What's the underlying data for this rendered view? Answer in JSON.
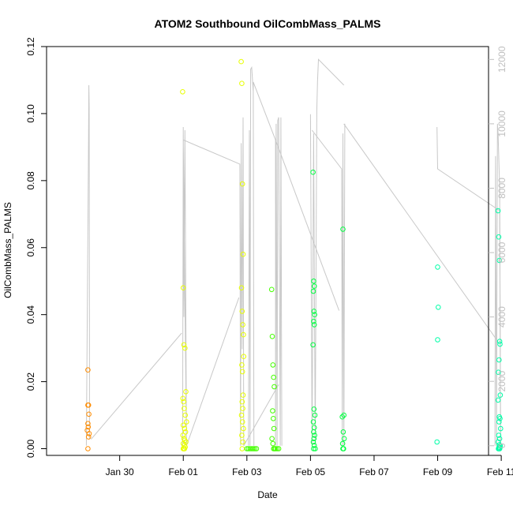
{
  "chart_data": {
    "type": "scatter",
    "title": "ATOM2 Southbound OilCombMass_PALMS",
    "xlabel": "Date",
    "ylabel": "OilCombMass_PALMS",
    "x_unit": "days from Jan 30",
    "xlim": [
      -2.3,
      11.6
    ],
    "ylim": [
      -0.002,
      0.12
    ],
    "y2lim": [
      -300,
      12400
    ],
    "x_ticks": [
      {
        "value": 0,
        "label": "Jan 30"
      },
      {
        "value": 2,
        "label": "Feb 01"
      },
      {
        "value": 4,
        "label": "Feb 03"
      },
      {
        "value": 6,
        "label": "Feb 05"
      },
      {
        "value": 8,
        "label": "Feb 07"
      },
      {
        "value": 10,
        "label": "Feb 09"
      },
      {
        "value": 12,
        "label": "Feb 11"
      }
    ],
    "y_ticks": [
      {
        "value": 0,
        "label": "0.00"
      },
      {
        "value": 0.02,
        "label": "0.02"
      },
      {
        "value": 0.04,
        "label": "0.04"
      },
      {
        "value": 0.06,
        "label": "0.06"
      },
      {
        "value": 0.08,
        "label": "0.08"
      },
      {
        "value": 0.1,
        "label": "0.10"
      },
      {
        "value": 0.12,
        "label": "0.12"
      }
    ],
    "y2_ticks": [
      {
        "value": 0,
        "label": "0"
      },
      {
        "value": 2000,
        "label": "2000"
      },
      {
        "value": 4000,
        "label": "4000"
      },
      {
        "value": 6000,
        "label": "6000"
      },
      {
        "value": 8000,
        "label": "8000"
      },
      {
        "value": 10000,
        "label": "10000"
      },
      {
        "value": 12000,
        "label": "12000"
      }
    ],
    "grid": false,
    "legend": "none",
    "colors": {
      "altitude_line": "#c8c8c8",
      "axis": "#000000",
      "right_axis": "#bfbfbf"
    },
    "series": [
      {
        "color": "#ff8c00",
        "x": [
          -1.0,
          -1.0,
          -0.98,
          -0.97,
          -1.0,
          -0.99,
          -1.02,
          -0.96,
          -0.98,
          -1.0
        ],
        "y": [
          0.0235,
          0.013,
          0.013,
          0.0103,
          0.0075,
          0.0065,
          0.0055,
          0.0045,
          0.0035,
          0.0
        ]
      },
      {
        "color": "#e8ff00",
        "x": [
          1.98,
          2.0,
          2.02,
          2.05,
          2.08,
          1.99,
          2.01,
          2.03,
          2.06,
          2.1,
          2.0,
          2.04,
          2.07,
          1.99,
          2.02,
          2.05,
          2.08,
          2.0,
          2.03,
          2.06,
          2.01,
          2.04,
          2.0,
          2.02,
          3.82,
          3.84,
          3.86,
          3.88,
          3.83,
          3.85,
          3.87,
          3.89,
          3.9,
          3.84,
          3.86,
          3.88,
          3.85,
          3.87,
          3.83,
          3.86,
          3.89,
          3.84,
          3.87,
          3.85
        ],
        "y": [
          0.1065,
          0.048,
          0.031,
          0.03,
          0.017,
          0.015,
          0.014,
          0.012,
          0.01,
          0.008,
          0.007,
          0.006,
          0.005,
          0.004,
          0.003,
          0.0025,
          0.002,
          0.0015,
          0.001,
          0.0005,
          0.0,
          0.0,
          0.0,
          0.0,
          0.1155,
          0.109,
          0.079,
          0.058,
          0.048,
          0.041,
          0.037,
          0.034,
          0.0275,
          0.025,
          0.023,
          0.016,
          0.014,
          0.012,
          0.01,
          0.008,
          0.006,
          0.004,
          0.002,
          0.0
        ]
      },
      {
        "color": "#44ff00",
        "x": [
          4.0,
          4.05,
          4.1,
          4.15,
          4.2,
          4.25,
          4.3,
          4.78,
          4.8,
          4.82,
          4.84,
          4.86,
          4.81,
          4.83,
          4.85,
          4.79,
          4.82,
          4.84,
          4.87,
          4.9,
          4.95,
          5.0
        ],
        "y": [
          0.0,
          0.0,
          0.0,
          0.0,
          0.0,
          0.0,
          0.0,
          0.0475,
          0.0335,
          0.025,
          0.0213,
          0.0185,
          0.0113,
          0.009,
          0.006,
          0.003,
          0.0015,
          0.0,
          0.0,
          0.0,
          0.0,
          0.0
        ]
      },
      {
        "color": "#00ff40",
        "x": [
          6.08,
          6.1,
          6.12,
          6.09,
          6.11,
          6.13,
          6.1,
          6.12,
          6.08,
          6.11,
          6.14,
          6.09,
          6.12,
          6.1,
          6.13,
          6.11,
          6.09,
          6.12,
          6.15,
          6.1,
          7.02,
          7.05,
          7.0,
          7.03,
          7.06,
          7.01,
          7.04,
          7.02
        ],
        "y": [
          0.0825,
          0.05,
          0.0485,
          0.047,
          0.041,
          0.04,
          0.038,
          0.037,
          0.031,
          0.0118,
          0.01,
          0.008,
          0.0063,
          0.005,
          0.004,
          0.003,
          0.002,
          0.001,
          0.0,
          0.0,
          0.0655,
          0.01,
          0.0095,
          0.005,
          0.003,
          0.0015,
          0.0,
          0.0
        ]
      },
      {
        "color": "#00ffa8",
        "x": [
          10.0,
          10.02,
          10.0,
          9.98,
          11.9,
          11.92,
          11.94,
          11.95,
          11.96,
          11.93,
          11.91,
          11.97,
          11.9,
          11.94,
          11.96,
          11.93,
          11.98,
          11.92,
          11.95,
          11.9,
          11.94,
          11.97,
          11.93,
          11.96,
          11.91,
          11.95,
          11.94,
          11.92
        ],
        "y": [
          0.0542,
          0.0422,
          0.0325,
          0.002,
          0.071,
          0.0632,
          0.0562,
          0.032,
          0.0312,
          0.0265,
          0.0228,
          0.016,
          0.0145,
          0.0095,
          0.009,
          0.008,
          0.006,
          0.004,
          0.003,
          0.002,
          0.0012,
          0.0008,
          0.0005,
          0.0003,
          0.0,
          0.0,
          0.0,
          0.0
        ]
      }
    ],
    "altitude_segments": [
      [
        [
          -1.05,
          0
        ],
        [
          -0.98,
          9500
        ],
        [
          -0.97,
          11200
        ],
        [
          -0.96,
          10500
        ],
        [
          -0.95,
          2000
        ],
        [
          -0.95,
          200
        ]
      ],
      [
        [
          -0.9,
          200
        ],
        [
          1.95,
          3500
        ]
      ],
      [
        [
          1.98,
          0
        ],
        [
          2.0,
          9900
        ],
        [
          2.02,
          4000
        ],
        [
          2.05,
          9800
        ],
        [
          2.07,
          6000
        ],
        [
          2.1,
          0
        ],
        [
          2.0,
          9500
        ],
        [
          3.78,
          8750
        ],
        [
          3.8,
          0
        ],
        [
          3.82,
          9400
        ],
        [
          3.85,
          3000
        ],
        [
          3.88,
          10200
        ],
        [
          3.9,
          0
        ]
      ],
      [
        [
          2.1,
          0
        ],
        [
          3.75,
          4600
        ]
      ],
      [
        [
          3.9,
          0
        ],
        [
          5.0,
          1900
        ]
      ],
      [
        [
          4.05,
          0
        ],
        [
          4.08,
          9800
        ],
        [
          4.1,
          0
        ],
        [
          4.12,
          11700
        ],
        [
          4.15,
          11750
        ],
        [
          4.2,
          11000
        ],
        [
          4.22,
          0
        ],
        [
          4.2,
          11300
        ],
        [
          4.9,
          9500
        ],
        [
          4.9,
          0
        ],
        [
          4.92,
          10000
        ],
        [
          4.95,
          0
        ],
        [
          4.97,
          10100
        ],
        [
          5.0,
          10200
        ]
      ],
      [
        [
          5.0,
          10200
        ],
        [
          5.05,
          0
        ],
        [
          5.07,
          10200
        ],
        [
          5.1,
          0
        ]
      ],
      [
        [
          4.9,
          9500
        ],
        [
          6.9,
          4200
        ]
      ],
      [
        [
          6.0,
          10300
        ],
        [
          6.05,
          0
        ],
        [
          6.1,
          9700
        ],
        [
          6.15,
          0
        ],
        [
          6.2,
          10400
        ],
        [
          6.22,
          11300
        ],
        [
          6.25,
          12000
        ],
        [
          7.05,
          11200
        ]
      ],
      [
        [
          6.05,
          9800
        ],
        [
          6.98,
          8600
        ],
        [
          7.0,
          0
        ],
        [
          7.02,
          9700
        ],
        [
          7.05,
          0
        ],
        [
          7.08,
          10000
        ]
      ],
      [
        [
          7.05,
          10000
        ],
        [
          11.85,
          3300
        ]
      ],
      [
        [
          9.98,
          9900
        ],
        [
          10.0,
          8600
        ],
        [
          11.95,
          7300
        ],
        [
          11.98,
          0
        ]
      ],
      [
        [
          11.8,
          0
        ],
        [
          11.82,
          9000
        ],
        [
          11.85,
          0
        ],
        [
          11.88,
          10000
        ],
        [
          11.9,
          9700
        ],
        [
          11.95,
          8000
        ],
        [
          11.98,
          0
        ]
      ]
    ]
  }
}
